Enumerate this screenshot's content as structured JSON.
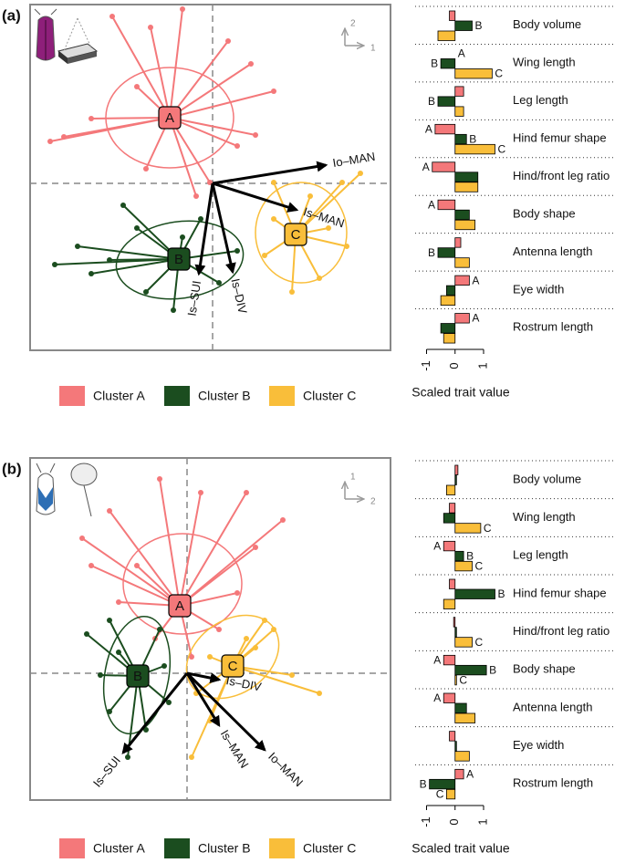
{
  "chart_data": [
    {
      "type": "scatter",
      "panel": "(a)",
      "x_axis_label": "1",
      "y_axis_label": "2",
      "xlim": [
        -2.0,
        1.95
      ],
      "ylim": [
        -1.83,
        1.96
      ],
      "series": [
        {
          "name": "Cluster A",
          "centroid_label": "A",
          "color": "#f4787a",
          "centroid": {
            "x": -0.47,
            "y": 0.72
          },
          "ellipse": {
            "x": -0.47,
            "y": 0.72,
            "rx": 0.7,
            "ry": 0.55,
            "angle": 0
          },
          "x": [
            -1.1,
            -0.68,
            -0.33,
            0.17,
            0.42,
            0.67,
            0.47,
            0.27,
            -0.03,
            -0.18,
            -0.83,
            -1.33,
            -1.63,
            -1.78,
            -0.73
          ],
          "y": [
            1.83,
            1.71,
            1.91,
            1.56,
            1.31,
            1.01,
            0.53,
            0.41,
            0.01,
            -0.14,
            1.06,
            0.71,
            0.51,
            0.46,
            0.16
          ]
        },
        {
          "name": "Cluster B",
          "centroid_label": "B",
          "color": "#1b4d1f",
          "centroid": {
            "x": -0.37,
            "y": -0.83
          },
          "ellipse": {
            "x": -0.36,
            "y": -0.84,
            "rx": 0.7,
            "ry": 0.42,
            "angle": -8
          },
          "x": [
            -0.98,
            -1.48,
            -1.73,
            -1.33,
            -0.73,
            -0.43,
            0.07,
            0.27,
            -0.13,
            -0.33,
            -1.13,
            -0.83
          ],
          "y": [
            -0.24,
            -0.69,
            -0.89,
            -0.99,
            -1.19,
            -1.39,
            -1.09,
            -0.74,
            -0.39,
            -0.59,
            -0.84,
            -0.49
          ]
        },
        {
          "name": "Cluster C",
          "centroid_label": "C",
          "color": "#f9be3a",
          "centroid": {
            "x": 0.91,
            "y": -0.56
          },
          "ellipse": {
            "x": 0.97,
            "y": -0.54,
            "rx": 0.5,
            "ry": 0.55,
            "angle": 0
          },
          "x": [
            0.67,
            1.07,
            1.42,
            1.62,
            1.47,
            1.17,
            0.87,
            0.57,
            0.67,
            1.27
          ],
          "y": [
            0.01,
            -0.14,
            0.01,
            0.11,
            -0.69,
            -1.04,
            -1.19,
            -0.79,
            -0.39,
            -0.49
          ]
        }
      ],
      "vectors": [
        {
          "label": "Io–MAN",
          "x": 1.24,
          "y": 0.2
        },
        {
          "label": "Is–MAN",
          "x": 0.92,
          "y": -0.29
        },
        {
          "label": "Is–SUI",
          "x": -0.15,
          "y": -0.99
        },
        {
          "label": "Is–DIV",
          "x": 0.22,
          "y": -0.97
        }
      ]
    },
    {
      "type": "bar",
      "xlabel": "Scaled trait value",
      "xlim": [
        -1.4,
        1.8
      ],
      "xticks": [
        -1,
        0,
        1
      ],
      "categories": [
        "Body volume",
        "Wing length",
        "Leg length",
        "Hind femur shape",
        "Hind/front leg ratio",
        "Body shape",
        "Antenna length",
        "Eye width",
        "Rostrum length"
      ],
      "series": [
        {
          "name": "A",
          "color": "#f4787a",
          "values": [
            -0.2,
            0,
            0.3,
            -0.7,
            -0.8,
            -0.6,
            0.2,
            0.5,
            0.5
          ],
          "labeled": [
            false,
            true,
            false,
            true,
            true,
            true,
            false,
            true,
            true
          ]
        },
        {
          "name": "B",
          "color": "#1b4d1f",
          "values": [
            0.6,
            -0.5,
            -0.6,
            0.4,
            0.8,
            0.5,
            -0.6,
            -0.3,
            -0.5
          ],
          "labeled": [
            true,
            true,
            true,
            true,
            false,
            false,
            true,
            false,
            false
          ]
        },
        {
          "name": "C",
          "color": "#f9be3a",
          "values": [
            -0.6,
            1.3,
            0.3,
            1.4,
            0.8,
            0.7,
            0.5,
            -0.5,
            -0.4
          ],
          "labeled": [
            false,
            true,
            false,
            true,
            false,
            false,
            false,
            false,
            false
          ]
        }
      ]
    },
    {
      "type": "scatter",
      "panel": "(b)",
      "x_axis_label": "2",
      "y_axis_label": "1",
      "xlim": [
        -1.72,
        2.23
      ],
      "ylim": [
        -1.39,
        2.36
      ],
      "series": [
        {
          "name": "Cluster A",
          "centroid_label": "A",
          "color": "#f4787a",
          "centroid": {
            "x": -0.08,
            "y": 0.74
          },
          "ellipse": {
            "x": -0.05,
            "y": 0.98,
            "rx": 0.65,
            "ry": 0.55,
            "angle": 0
          },
          "x": [
            -0.3,
            0.65,
            1.05,
            0.75,
            0.55,
            0.35,
            0.05,
            -0.35,
            -0.75,
            -1.15,
            -0.85,
            -0.55,
            -1.05,
            0.15
          ],
          "y": [
            2.13,
            1.98,
            1.68,
            1.38,
            0.88,
            0.48,
            0.18,
            0.38,
            0.78,
            1.48,
            1.78,
            1.18,
            1.18,
            1.98
          ]
        },
        {
          "name": "Cluster B",
          "centroid_label": "B",
          "color": "#1b4d1f",
          "centroid": {
            "x": -0.54,
            "y": -0.03
          },
          "ellipse": {
            "x": -0.55,
            "y": -0.02,
            "rx": 0.35,
            "ry": 0.65,
            "angle": 10
          },
          "x": [
            -1.1,
            -0.85,
            -0.3,
            -0.25,
            -0.2,
            -0.45,
            -0.65,
            -0.85,
            -0.95,
            -0.75
          ],
          "y": [
            0.43,
            0.58,
            0.48,
            0.08,
            -0.32,
            -0.62,
            -0.92,
            -0.42,
            -0.02,
            0.23
          ]
        },
        {
          "name": "Cluster C",
          "centroid_label": "C",
          "color": "#f9be3a",
          "centroid": {
            "x": 0.5,
            "y": 0.08
          },
          "ellipse": {
            "x": 0.5,
            "y": 0.18,
            "rx": 0.55,
            "ry": 0.4,
            "angle": -35
          },
          "x": [
            0.85,
            0.95,
            0.65,
            1.15,
            1.45,
            0.05,
            0.25,
            0.1,
            0.25,
            0.75
          ],
          "y": [
            0.58,
            0.48,
            0.38,
            -0.02,
            -0.22,
            -0.92,
            -0.52,
            -0.22,
            0.18,
            0.28
          ]
        }
      ],
      "vectors": [
        {
          "label": "Is–SUI",
          "x": -0.7,
          "y": -0.87
        },
        {
          "label": "Is–MAN",
          "x": 0.35,
          "y": -0.57
        },
        {
          "label": "Io–MAN",
          "x": 0.85,
          "y": -0.84
        },
        {
          "label": "Is–DIV",
          "x": 0.35,
          "y": -0.07
        }
      ]
    },
    {
      "type": "bar",
      "xlabel": "Scaled trait value",
      "xlim": [
        -1.4,
        1.8
      ],
      "xticks": [
        -1,
        0,
        1
      ],
      "categories": [
        "Body volume",
        "Wing length",
        "Leg length",
        "Hind femur shape",
        "Hind/front leg ratio",
        "Body shape",
        "Antenna length",
        "Eye width",
        "Rostrum length"
      ],
      "series": [
        {
          "name": "A",
          "color": "#f4787a",
          "values": [
            0.1,
            -0.2,
            -0.4,
            -0.2,
            -0.05,
            -0.4,
            -0.4,
            -0.2,
            0.3
          ],
          "labeled": [
            false,
            false,
            true,
            false,
            false,
            true,
            true,
            false,
            true
          ]
        },
        {
          "name": "B",
          "color": "#1b4d1f",
          "values": [
            0.05,
            -0.4,
            0.3,
            1.4,
            0.05,
            1.1,
            0.4,
            0.05,
            -0.9
          ],
          "labeled": [
            false,
            false,
            true,
            true,
            false,
            true,
            false,
            false,
            true
          ]
        },
        {
          "name": "C",
          "color": "#f9be3a",
          "values": [
            -0.3,
            0.9,
            0.6,
            -0.4,
            0.6,
            0.05,
            0.7,
            0.5,
            -0.3
          ],
          "labeled": [
            false,
            true,
            true,
            false,
            true,
            true,
            false,
            false,
            true
          ]
        }
      ]
    }
  ]
}
